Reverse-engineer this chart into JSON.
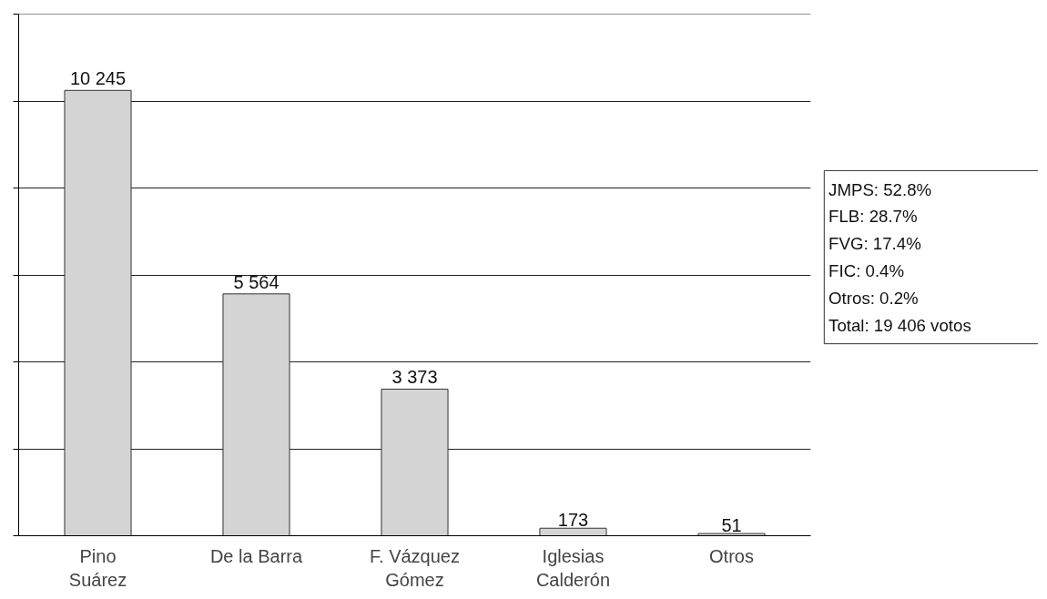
{
  "chart_data": {
    "type": "bar",
    "categories": [
      "Pino\nSuárez",
      "De la Barra",
      "F. Vázquez\nGómez",
      "Iglesias\nCalderón",
      "Otros"
    ],
    "values": [
      10245,
      5564,
      3373,
      173,
      51
    ],
    "value_labels": [
      "10 245",
      "5 564",
      "3 373",
      "173",
      "51"
    ],
    "color": "#d4d4d4",
    "ylim": [
      0,
      12000
    ],
    "yticks": [
      {
        "value": 0,
        "label": null
      },
      {
        "value": 2000,
        "label": null
      },
      {
        "value": 4000,
        "label": null
      },
      {
        "value": 6000,
        "label": null
      },
      {
        "value": 8000,
        "label": null
      },
      {
        "value": 10000,
        "label": null
      },
      {
        "value": 12000,
        "label": null
      }
    ],
    "tick_labels": "x",
    "grid": "y",
    "annotations": [
      "JMPS: 52.8%",
      "FLB: 28.7%",
      "FVG: 17.4%",
      "FIC: 0.4%",
      "Otros: 0.2%",
      "Total: 19 406 votos"
    ]
  }
}
